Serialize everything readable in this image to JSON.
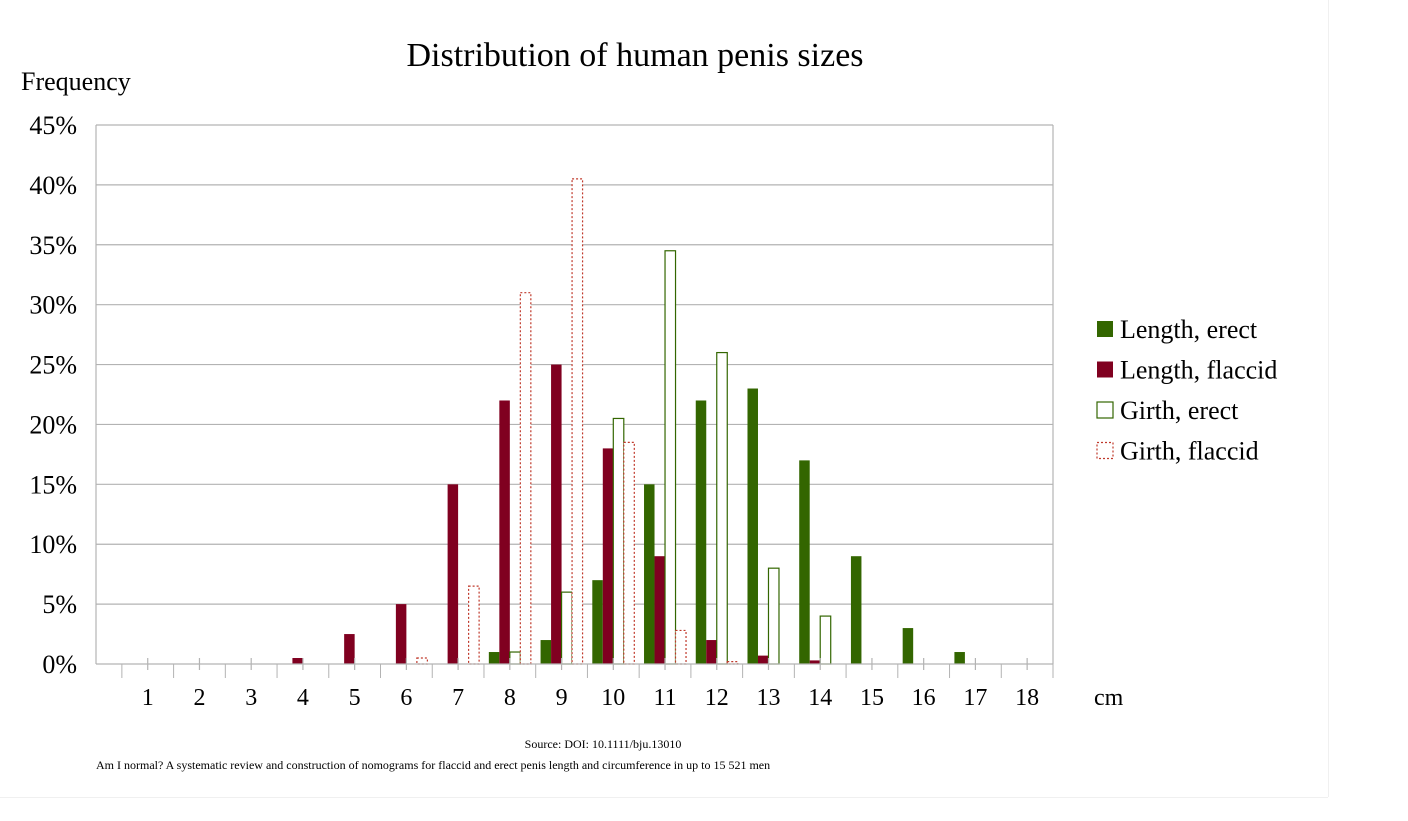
{
  "chart_data": {
    "type": "bar",
    "title": "Distribution of human penis sizes",
    "ylabel": "Frequency",
    "xlabel": "cm",
    "ylim": [
      0,
      45
    ],
    "yticks": [
      "0%",
      "5%",
      "10%",
      "15%",
      "20%",
      "25%",
      "30%",
      "35%",
      "40%",
      "45%"
    ],
    "categories": [
      "1",
      "2",
      "3",
      "4",
      "5",
      "6",
      "7",
      "8",
      "9",
      "10",
      "11",
      "12",
      "13",
      "14",
      "15",
      "16",
      "17",
      "18"
    ],
    "grid": true,
    "legend_position": "right",
    "series": [
      {
        "name": "Length, erect",
        "color": "#336600",
        "style": "filled",
        "values": [
          0,
          0,
          0,
          0,
          0,
          0,
          0,
          1,
          2,
          7,
          15,
          22,
          23,
          17,
          9,
          3,
          1,
          0
        ]
      },
      {
        "name": "Length, flaccid",
        "color": "#800020",
        "style": "filled",
        "values": [
          0,
          0,
          0,
          0.5,
          2.5,
          5,
          15,
          22,
          25,
          18,
          9,
          2,
          0.7,
          0.3,
          0,
          0,
          0,
          0
        ]
      },
      {
        "name": "Girth, erect",
        "color": "#336600",
        "style": "outline",
        "values": [
          0,
          0,
          0,
          0,
          0,
          0,
          0,
          1,
          6,
          20.5,
          34.5,
          26,
          8,
          4,
          0,
          0,
          0,
          0
        ]
      },
      {
        "name": "Girth, flaccid",
        "color": "#c0392b",
        "style": "dotted",
        "values": [
          0,
          0,
          0,
          0,
          0,
          0.5,
          6.5,
          31,
          40.5,
          18.5,
          2.8,
          0.2,
          0,
          0,
          0,
          0,
          0,
          0
        ]
      }
    ],
    "source": "Source: DOI: 10.1111/bju.13010",
    "citation": "Am I normal? A systematic review and construction of nomograms for flaccid and erect penis length and circumference in up to 15 521 men"
  }
}
